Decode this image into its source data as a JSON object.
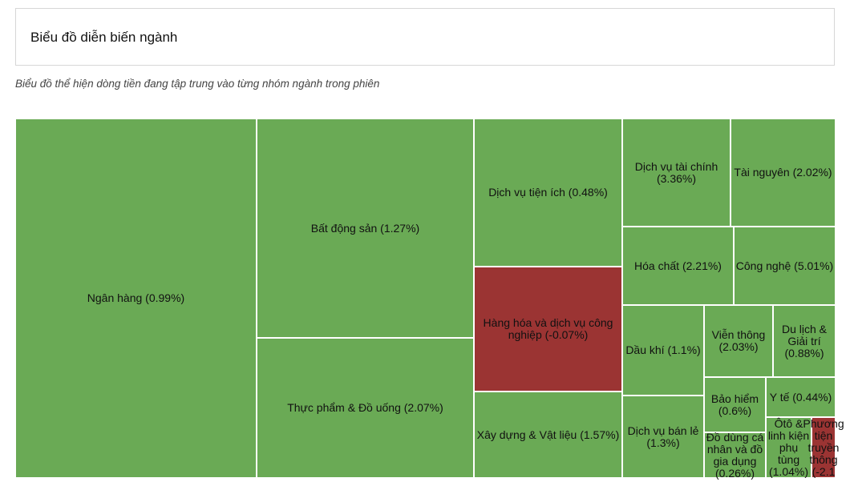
{
  "header": {
    "title": "Biểu đồ diễn biến ngành"
  },
  "subtitle": "Biểu đồ thể hiện dòng tiền đang tập trung vào từng nhóm ngành trong phiên",
  "colors": {
    "positive": "#6aaa55",
    "negative": "#9b3433",
    "cell_border": "#ffffff"
  },
  "chart_data": {
    "type": "treemap",
    "title": "Biểu đồ diễn biến ngành",
    "items": [
      {
        "name": "Ngân hàng",
        "change_pct": 0.99,
        "label": "Ngân hàng (0.99%)"
      },
      {
        "name": "Bất động sản",
        "change_pct": 1.27,
        "label": "Bất động sản (1.27%)"
      },
      {
        "name": "Thực phẩm & Đồ uống",
        "change_pct": 2.07,
        "label": "Thực phẩm & Đồ uống (2.07%)"
      },
      {
        "name": "Dịch vụ tiện ích",
        "change_pct": 0.48,
        "label": "Dịch vụ tiện ích (0.48%)"
      },
      {
        "name": "Hàng hóa và dịch vụ công nghiệp",
        "change_pct": -0.07,
        "label": "Hàng hóa và dịch vụ công nghiệp (-0.07%)"
      },
      {
        "name": "Xây dựng & Vật liệu",
        "change_pct": 1.57,
        "label": "Xây dựng & Vật liệu (1.57%)"
      },
      {
        "name": "Dịch vụ tài chính",
        "change_pct": 3.36,
        "label": "Dịch vụ tài chính (3.36%)"
      },
      {
        "name": "Tài nguyên",
        "change_pct": 2.02,
        "label": "Tài nguyên (2.02%)"
      },
      {
        "name": "Hóa chất",
        "change_pct": 2.21,
        "label": "Hóa chất (2.21%)"
      },
      {
        "name": "Công nghệ",
        "change_pct": 5.01,
        "label": "Công nghệ (5.01%)"
      },
      {
        "name": "Dầu khí",
        "change_pct": 1.1,
        "label": "Dầu khí (1.1%)"
      },
      {
        "name": "Viễn thông",
        "change_pct": 2.03,
        "label": "Viễn thông (2.03%)"
      },
      {
        "name": "Du lịch & Giải trí",
        "change_pct": 0.88,
        "label": "Du lịch & Giải trí (0.88%)"
      },
      {
        "name": "Dịch vụ bán lẻ",
        "change_pct": 1.3,
        "label": "Dịch vụ bán lẻ (1.3%)"
      },
      {
        "name": "Bảo hiểm",
        "change_pct": 0.6,
        "label": "Bảo hiểm (0.6%)"
      },
      {
        "name": "Y tế",
        "change_pct": 0.44,
        "label": "Y tế (0.44%)"
      },
      {
        "name": "Đồ dùng cá nhân và đồ gia dụng",
        "change_pct": 0.26,
        "label": "Đồ dùng cá nhân và đồ gia dụng (0.26%)"
      },
      {
        "name": "Ôtô & linh kiện phụ tùng",
        "change_pct": 1.04,
        "label": "Ôtô & linh kiện phụ tùng (1.04%)"
      },
      {
        "name": "Phương tiện truyền thông",
        "change_pct": -2.1,
        "label": "Phương tiện truyền thông (-2.1"
      }
    ]
  }
}
